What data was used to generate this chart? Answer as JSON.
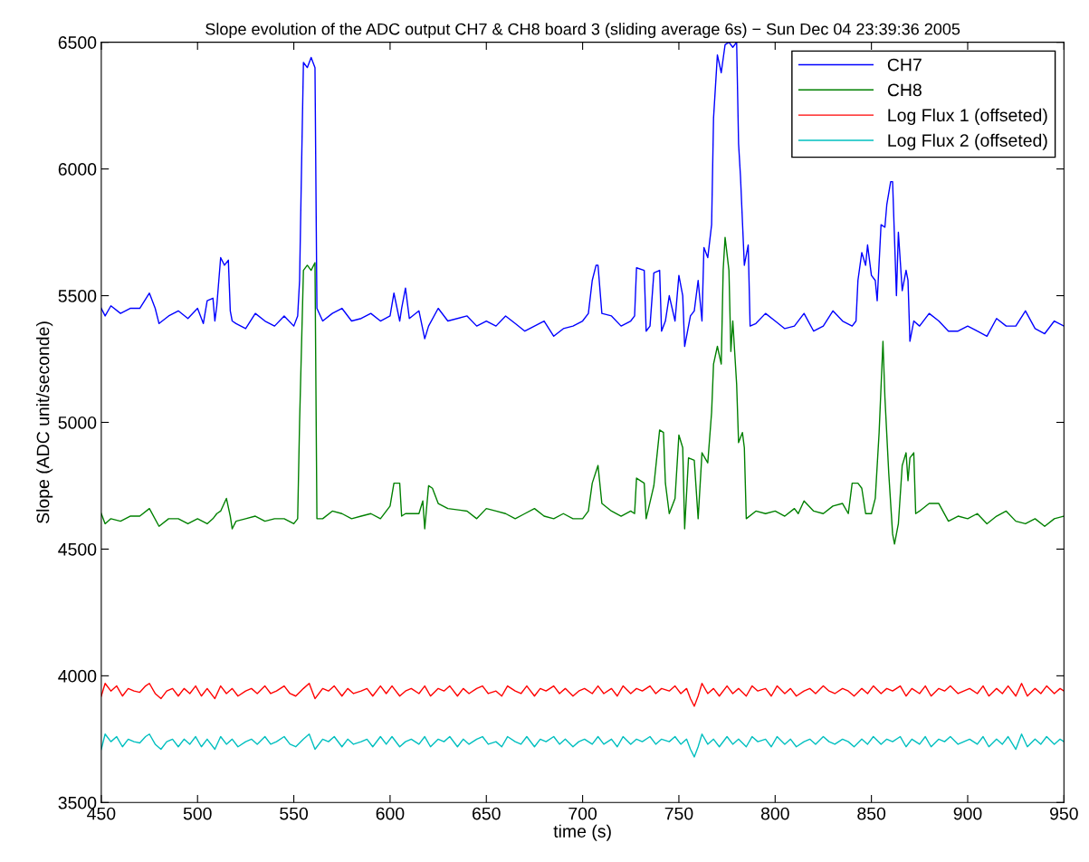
{
  "chart_data": {
    "type": "line",
    "title": "Slope evolution of the ADC output CH7 & CH8 board 3 (sliding average 6s) − Sun Dec 04 23:39:36 2005",
    "xlabel": "time (s)",
    "ylabel": "Slope (ADC unit/seconde)",
    "xlim": [
      450,
      950
    ],
    "xticks": [
      450,
      500,
      550,
      600,
      650,
      700,
      750,
      800,
      850,
      900,
      950
    ],
    "ylim": [
      3500,
      6500
    ],
    "yticks": [
      3500,
      4000,
      4500,
      5000,
      5500,
      6000,
      6500
    ],
    "grid": false,
    "legend": "top right",
    "line_style": "solid",
    "marker": "none",
    "series": [
      {
        "name": "CH7",
        "color": "#0000ff",
        "x": [
          450,
          452,
          455,
          460,
          465,
          470,
          475,
          478,
          480,
          485,
          490,
          495,
          500,
          503,
          505,
          508,
          509,
          510,
          512,
          514,
          516,
          517,
          518,
          520,
          525,
          530,
          535,
          540,
          545,
          550,
          552,
          553,
          554,
          555,
          557,
          559,
          561,
          562,
          565,
          570,
          575,
          580,
          585,
          590,
          595,
          600,
          602,
          605,
          606,
          608,
          610,
          615,
          618,
          620,
          625,
          630,
          640,
          645,
          650,
          655,
          660,
          665,
          670,
          675,
          680,
          685,
          690,
          695,
          700,
          703,
          705,
          707,
          708,
          710,
          715,
          720,
          725,
          727,
          728,
          732,
          733,
          735,
          737,
          740,
          741,
          743,
          745,
          748,
          750,
          752,
          753,
          756,
          758,
          760,
          762,
          763,
          765,
          767,
          768,
          770,
          772,
          774,
          776,
          778,
          780,
          781,
          782,
          784,
          786,
          787,
          790,
          795,
          800,
          805,
          810,
          815,
          820,
          825,
          830,
          835,
          840,
          842,
          843,
          845,
          847,
          848,
          850,
          852,
          853,
          855,
          857,
          858,
          860,
          861,
          863,
          864,
          866,
          868,
          869,
          870,
          872,
          875,
          880,
          885,
          890,
          895,
          900,
          905,
          910,
          915,
          920,
          925,
          930,
          935,
          940,
          945,
          950
        ],
        "values": [
          5450,
          5420,
          5460,
          5430,
          5450,
          5450,
          5510,
          5450,
          5390,
          5420,
          5440,
          5410,
          5450,
          5390,
          5480,
          5490,
          5400,
          5460,
          5650,
          5620,
          5640,
          5440,
          5400,
          5390,
          5370,
          5430,
          5400,
          5380,
          5420,
          5380,
          5420,
          5560,
          6000,
          6420,
          6400,
          6440,
          6400,
          5450,
          5400,
          5430,
          5450,
          5400,
          5410,
          5430,
          5400,
          5420,
          5510,
          5400,
          5450,
          5530,
          5410,
          5440,
          5330,
          5380,
          5450,
          5400,
          5420,
          5380,
          5400,
          5380,
          5420,
          5390,
          5360,
          5380,
          5400,
          5340,
          5370,
          5380,
          5400,
          5430,
          5560,
          5620,
          5620,
          5430,
          5420,
          5380,
          5400,
          5420,
          5610,
          5600,
          5360,
          5380,
          5590,
          5600,
          5360,
          5400,
          5500,
          5400,
          5580,
          5500,
          5300,
          5420,
          5440,
          5560,
          5400,
          5690,
          5650,
          5780,
          6200,
          6450,
          6380,
          6490,
          6500,
          6480,
          6500,
          6100,
          5970,
          5620,
          5700,
          5380,
          5390,
          5430,
          5400,
          5370,
          5380,
          5430,
          5360,
          5380,
          5440,
          5400,
          5380,
          5400,
          5560,
          5670,
          5620,
          5700,
          5580,
          5560,
          5480,
          5780,
          5770,
          5860,
          5950,
          5950,
          5500,
          5750,
          5520,
          5600,
          5560,
          5320,
          5400,
          5380,
          5430,
          5400,
          5360,
          5360,
          5380,
          5360,
          5340,
          5410,
          5380,
          5380,
          5440,
          5370,
          5350,
          5400,
          5380
        ]
      },
      {
        "name": "CH8",
        "color": "#008000",
        "x": [
          450,
          452,
          455,
          460,
          465,
          470,
          475,
          480,
          485,
          490,
          495,
          500,
          505,
          508,
          510,
          512,
          515,
          517,
          518,
          520,
          525,
          530,
          535,
          540,
          545,
          550,
          552,
          553,
          555,
          557,
          559,
          561,
          562,
          565,
          570,
          575,
          580,
          585,
          590,
          595,
          600,
          602,
          605,
          606,
          608,
          612,
          615,
          617,
          618,
          620,
          622,
          625,
          630,
          640,
          645,
          650,
          655,
          660,
          665,
          670,
          675,
          680,
          685,
          690,
          695,
          700,
          703,
          705,
          708,
          710,
          715,
          720,
          725,
          727,
          728,
          732,
          733,
          737,
          740,
          742,
          743,
          745,
          748,
          750,
          752,
          753,
          755,
          758,
          760,
          762,
          765,
          767,
          768,
          770,
          772,
          773,
          774,
          776,
          777,
          778,
          780,
          781,
          783,
          784,
          785,
          790,
          795,
          800,
          805,
          810,
          812,
          815,
          820,
          825,
          830,
          835,
          838,
          840,
          843,
          845,
          847,
          850,
          852,
          854,
          856,
          857,
          859,
          861,
          862,
          864,
          866,
          868,
          869,
          870,
          872,
          873,
          875,
          880,
          885,
          890,
          895,
          900,
          905,
          910,
          915,
          920,
          925,
          930,
          935,
          940,
          945,
          950
        ],
        "values": [
          4640,
          4600,
          4620,
          4610,
          4630,
          4630,
          4660,
          4590,
          4620,
          4620,
          4600,
          4620,
          4600,
          4620,
          4640,
          4650,
          4700,
          4630,
          4580,
          4610,
          4620,
          4630,
          4610,
          4620,
          4620,
          4600,
          4620,
          5000,
          5600,
          5620,
          5600,
          5630,
          4620,
          4620,
          4650,
          4640,
          4620,
          4630,
          4640,
          4620,
          4670,
          4760,
          4760,
          4630,
          4640,
          4640,
          4640,
          4690,
          4580,
          4750,
          4740,
          4680,
          4660,
          4650,
          4620,
          4660,
          4650,
          4640,
          4620,
          4640,
          4660,
          4630,
          4620,
          4640,
          4620,
          4620,
          4650,
          4760,
          4830,
          4680,
          4650,
          4630,
          4650,
          4640,
          4780,
          4760,
          4620,
          4750,
          4970,
          4960,
          4760,
          4640,
          4700,
          4950,
          4900,
          4580,
          4860,
          4850,
          4620,
          4880,
          4840,
          5040,
          5230,
          5300,
          5230,
          5600,
          5730,
          5600,
          5280,
          5400,
          5150,
          4920,
          4960,
          4900,
          4620,
          4650,
          4640,
          4650,
          4630,
          4660,
          4640,
          4690,
          4650,
          4640,
          4670,
          4680,
          4640,
          4760,
          4760,
          4740,
          4640,
          4640,
          4700,
          4960,
          5320,
          5100,
          4800,
          4560,
          4520,
          4600,
          4830,
          4880,
          4770,
          4860,
          4880,
          4640,
          4650,
          4680,
          4680,
          4610,
          4630,
          4620,
          4640,
          4600,
          4630,
          4650,
          4610,
          4600,
          4620,
          4590,
          4620,
          4630
        ]
      },
      {
        "name": "Log Flux 1 (offseted)",
        "color": "#ff0000",
        "x": [
          450,
          452,
          455,
          458,
          461,
          464,
          467,
          470,
          473,
          475,
          478,
          481,
          484,
          487,
          490,
          493,
          496,
          499,
          502,
          505,
          509,
          512,
          515,
          518,
          521,
          525,
          528,
          531,
          535,
          538,
          541,
          545,
          548,
          551,
          555,
          558,
          561,
          565,
          568,
          571,
          575,
          578,
          581,
          585,
          588,
          591,
          595,
          598,
          601,
          605,
          608,
          611,
          615,
          618,
          621,
          625,
          628,
          631,
          635,
          638,
          641,
          645,
          648,
          651,
          655,
          658,
          661,
          665,
          668,
          671,
          675,
          678,
          681,
          685,
          688,
          691,
          695,
          698,
          701,
          705,
          708,
          711,
          715,
          718,
          721,
          725,
          728,
          731,
          735,
          738,
          741,
          745,
          748,
          751,
          754,
          756,
          758,
          760,
          762,
          765,
          768,
          771,
          775,
          778,
          781,
          785,
          788,
          791,
          795,
          798,
          801,
          805,
          808,
          811,
          815,
          818,
          821,
          825,
          828,
          831,
          835,
          838,
          841,
          845,
          848,
          851,
          855,
          858,
          861,
          865,
          868,
          871,
          875,
          878,
          881,
          885,
          888,
          891,
          895,
          898,
          901,
          905,
          908,
          911,
          915,
          918,
          921,
          925,
          928,
          931,
          935,
          938,
          941,
          945,
          948,
          950
        ],
        "values": [
          3920,
          3970,
          3940,
          3960,
          3920,
          3950,
          3940,
          3935,
          3960,
          3970,
          3930,
          3910,
          3940,
          3950,
          3920,
          3950,
          3930,
          3960,
          3920,
          3950,
          3910,
          3960,
          3930,
          3950,
          3920,
          3940,
          3950,
          3930,
          3960,
          3930,
          3940,
          3960,
          3930,
          3920,
          3950,
          3970,
          3910,
          3950,
          3940,
          3960,
          3920,
          3950,
          3930,
          3940,
          3950,
          3920,
          3960,
          3930,
          3960,
          3920,
          3940,
          3950,
          3930,
          3960,
          3920,
          3950,
          3940,
          3960,
          3920,
          3950,
          3930,
          3950,
          3960,
          3930,
          3940,
          3920,
          3960,
          3940,
          3930,
          3960,
          3920,
          3950,
          3940,
          3960,
          3930,
          3950,
          3920,
          3940,
          3950,
          3930,
          3960,
          3930,
          3950,
          3920,
          3960,
          3930,
          3950,
          3940,
          3960,
          3930,
          3950,
          3940,
          3960,
          3930,
          3950,
          3910,
          3880,
          3920,
          3970,
          3930,
          3950,
          3920,
          3960,
          3930,
          3950,
          3920,
          3960,
          3940,
          3950,
          3920,
          3960,
          3930,
          3950,
          3920,
          3940,
          3950,
          3930,
          3960,
          3940,
          3930,
          3950,
          3940,
          3920,
          3950,
          3930,
          3960,
          3930,
          3950,
          3940,
          3960,
          3920,
          3950,
          3930,
          3960,
          3920,
          3950,
          3940,
          3960,
          3930,
          3940,
          3950,
          3930,
          3960,
          3920,
          3950,
          3930,
          3960,
          3920,
          3970,
          3920,
          3950,
          3930,
          3960,
          3930,
          3950,
          3940
        ]
      },
      {
        "name": "Log Flux 2 (offseted)",
        "color": "#00bfbf",
        "x": [
          450,
          452,
          455,
          458,
          461,
          464,
          467,
          470,
          473,
          475,
          478,
          481,
          484,
          487,
          490,
          493,
          496,
          499,
          502,
          505,
          509,
          512,
          515,
          518,
          521,
          525,
          528,
          531,
          535,
          538,
          541,
          545,
          548,
          551,
          555,
          558,
          561,
          565,
          568,
          571,
          575,
          578,
          581,
          585,
          588,
          591,
          595,
          598,
          601,
          605,
          608,
          611,
          615,
          618,
          621,
          625,
          628,
          631,
          635,
          638,
          641,
          645,
          648,
          651,
          655,
          658,
          661,
          665,
          668,
          671,
          675,
          678,
          681,
          685,
          688,
          691,
          695,
          698,
          701,
          705,
          708,
          711,
          715,
          718,
          721,
          725,
          728,
          731,
          735,
          738,
          741,
          745,
          748,
          751,
          754,
          756,
          758,
          760,
          762,
          765,
          768,
          771,
          775,
          778,
          781,
          785,
          788,
          791,
          795,
          798,
          801,
          805,
          808,
          811,
          815,
          818,
          821,
          825,
          828,
          831,
          835,
          838,
          841,
          845,
          848,
          851,
          855,
          858,
          861,
          865,
          868,
          871,
          875,
          878,
          881,
          885,
          888,
          891,
          895,
          898,
          901,
          905,
          908,
          911,
          915,
          918,
          921,
          925,
          928,
          931,
          935,
          938,
          941,
          945,
          948,
          950
        ],
        "values": [
          3710,
          3770,
          3740,
          3760,
          3720,
          3750,
          3740,
          3735,
          3760,
          3770,
          3730,
          3710,
          3740,
          3750,
          3720,
          3750,
          3730,
          3760,
          3720,
          3750,
          3710,
          3760,
          3730,
          3750,
          3720,
          3740,
          3750,
          3730,
          3760,
          3730,
          3740,
          3760,
          3730,
          3720,
          3750,
          3770,
          3710,
          3750,
          3740,
          3760,
          3720,
          3750,
          3730,
          3740,
          3750,
          3720,
          3760,
          3730,
          3760,
          3720,
          3740,
          3750,
          3730,
          3760,
          3720,
          3750,
          3740,
          3760,
          3720,
          3750,
          3730,
          3750,
          3760,
          3730,
          3740,
          3720,
          3760,
          3740,
          3730,
          3760,
          3720,
          3750,
          3740,
          3760,
          3730,
          3750,
          3720,
          3740,
          3750,
          3730,
          3760,
          3730,
          3750,
          3720,
          3760,
          3730,
          3750,
          3740,
          3760,
          3730,
          3750,
          3740,
          3760,
          3730,
          3750,
          3710,
          3680,
          3720,
          3770,
          3730,
          3750,
          3720,
          3760,
          3730,
          3750,
          3720,
          3760,
          3740,
          3750,
          3720,
          3760,
          3730,
          3750,
          3720,
          3740,
          3750,
          3730,
          3760,
          3740,
          3730,
          3750,
          3740,
          3720,
          3750,
          3730,
          3760,
          3730,
          3750,
          3740,
          3760,
          3720,
          3750,
          3730,
          3760,
          3720,
          3750,
          3740,
          3760,
          3730,
          3740,
          3750,
          3730,
          3760,
          3720,
          3750,
          3730,
          3760,
          3710,
          3770,
          3720,
          3750,
          3730,
          3760,
          3730,
          3750,
          3740
        ]
      }
    ]
  }
}
